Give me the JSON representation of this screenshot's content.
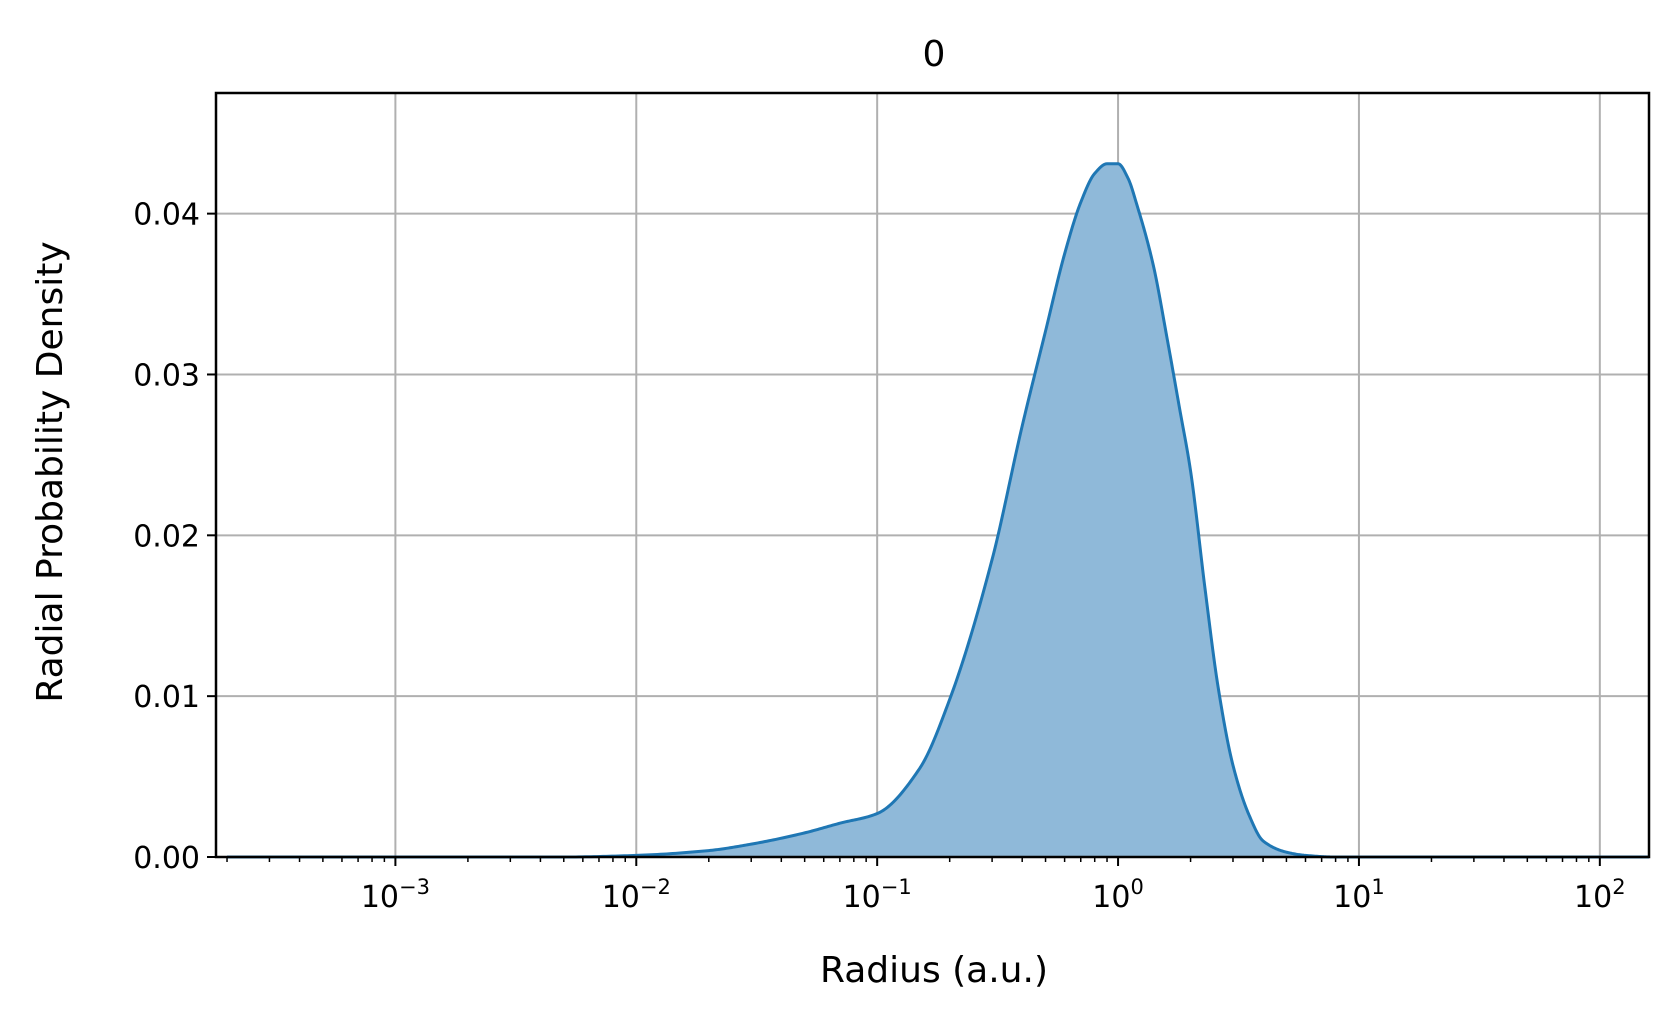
{
  "chart_data": {
    "type": "area",
    "title": "0",
    "xlabel": "Radius (a.u.)",
    "ylabel": "Radial Probability Density",
    "xscale": "log",
    "xlim": [
      0.00018,
      160
    ],
    "ylim": [
      0,
      0.0475
    ],
    "grid": true,
    "x_ticks": [
      {
        "value": 0.001,
        "base": "10",
        "exp": "−3"
      },
      {
        "value": 0.01,
        "base": "10",
        "exp": "−2"
      },
      {
        "value": 0.1,
        "base": "10",
        "exp": "−1"
      },
      {
        "value": 1,
        "base": "10",
        "exp": "0"
      },
      {
        "value": 10,
        "base": "10",
        "exp": "1"
      },
      {
        "value": 100,
        "base": "10",
        "exp": "2"
      }
    ],
    "y_ticks": [
      {
        "value": 0.0,
        "label": "0.00"
      },
      {
        "value": 0.01,
        "label": "0.01"
      },
      {
        "value": 0.02,
        "label": "0.02"
      },
      {
        "value": 0.03,
        "label": "0.03"
      },
      {
        "value": 0.04,
        "label": "0.04"
      }
    ],
    "series": [
      {
        "line_color": "#1f77b4",
        "fill_color": "#8fb9d9",
        "x": [
          0.0002,
          0.001,
          0.005,
          0.01,
          0.02,
          0.03,
          0.05,
          0.07,
          0.1,
          0.15,
          0.2,
          0.3,
          0.4,
          0.5,
          0.6,
          0.7,
          0.8,
          0.9,
          1.0,
          1.1,
          1.2,
          1.4,
          1.6,
          1.8,
          2.0,
          2.3,
          2.6,
          3.0,
          3.5,
          4.0,
          5.0,
          6.0,
          8.0,
          10.0,
          50.0,
          160.0
        ],
        "y": [
          0.0,
          0.0,
          0.0,
          0.0001,
          0.0004,
          0.0008,
          0.0015,
          0.0021,
          0.0027,
          0.0055,
          0.0098,
          0.0185,
          0.0268,
          0.0327,
          0.0375,
          0.0407,
          0.0425,
          0.0431,
          0.0431,
          0.0422,
          0.0405,
          0.0368,
          0.0322,
          0.0279,
          0.024,
          0.0166,
          0.0106,
          0.0057,
          0.0026,
          0.001,
          0.0003,
          0.0001,
          0.0,
          0.0,
          0.0,
          0.0
        ]
      }
    ]
  }
}
